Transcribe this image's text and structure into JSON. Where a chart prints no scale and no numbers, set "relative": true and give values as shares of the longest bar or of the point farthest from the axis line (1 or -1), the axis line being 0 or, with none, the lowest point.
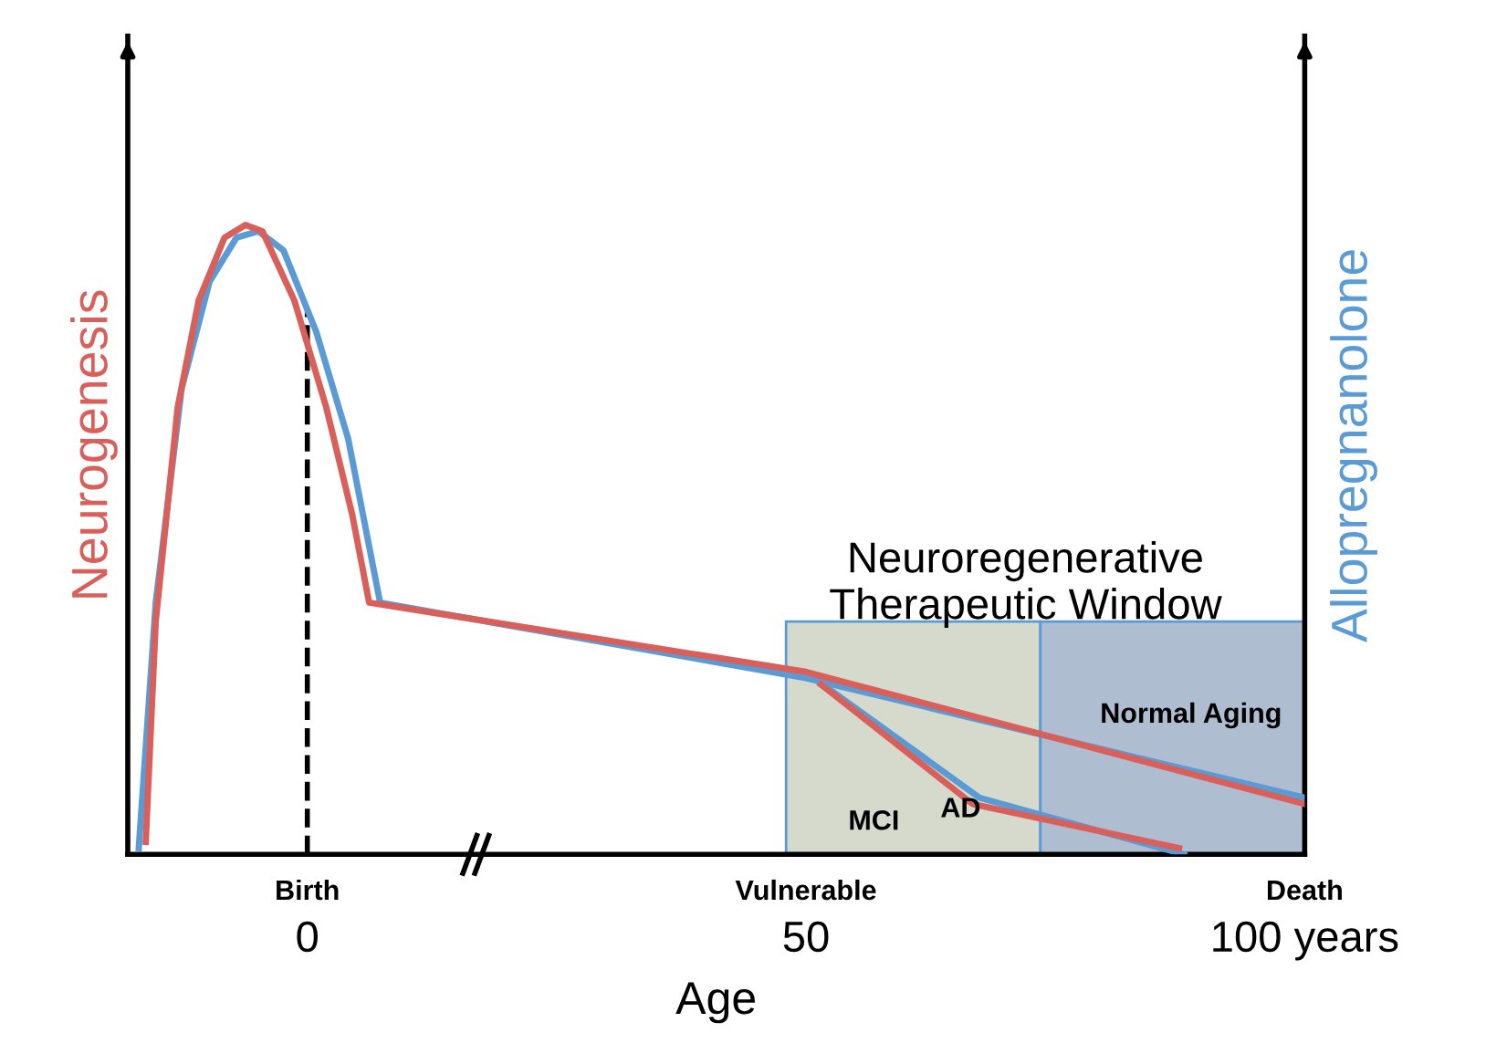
{
  "chart_data": {
    "type": "line",
    "relative": true,
    "xlabel": "Age",
    "ylabel": "Neurogenesis",
    "y2label": "Allopregnanolone",
    "xlim": [
      -18,
      100
    ],
    "xticks": [
      0,
      50,
      {
        "value": 100,
        "label": "100 years"
      }
    ],
    "series": [
      {
        "color": "#5b9bd5",
        "x": [
          -16.9,
          -15.2,
          -12.6,
          -9.8,
          -7.1,
          -4.9,
          -2.4,
          0.9,
          4.1,
          7.3,
          50,
          100
        ],
        "values": [
          0.01,
          0.4,
          0.74,
          0.91,
          0.98,
          0.99,
          0.96,
          0.83,
          0.66,
          0.4,
          0.28,
          0.09
        ]
      },
      {
        "color": "#5b9bd5",
        "x": [
          50.8,
          67.4,
          87.9
        ],
        "values": [
          0.28,
          0.09,
          0.0
        ]
      },
      {
        "color": "#d9605a",
        "x": [
          -16.2,
          -15.2,
          -13.0,
          -10.9,
          -8.3,
          -6.2,
          -4.5,
          -1.3,
          1.9,
          4.5,
          6.2,
          50,
          100
        ],
        "values": [
          0.02,
          0.37,
          0.71,
          0.88,
          0.98,
          1.0,
          0.99,
          0.88,
          0.71,
          0.54,
          0.4,
          0.29,
          0.08
        ]
      },
      {
        "color": "#d9605a",
        "x": [
          51.5,
          66.7,
          87.4
        ],
        "values": [
          0.27,
          0.08,
          0.01
        ]
      }
    ],
    "ref_lines": [
      {
        "axis": "x",
        "value": 0,
        "color": "#000000",
        "line_style": "dashed"
      }
    ],
    "bands": [
      {
        "axis": "x",
        "from": 48,
        "to": 73.5,
        "color": "#d5dacd"
      },
      {
        "axis": "x",
        "from": 73.5,
        "to": 100,
        "color": "#aebdd0"
      }
    ],
    "annotations": [
      {
        "text": "Neuroregenerative\nTherapeutic Window",
        "x": 72,
        "y": 0.36
      },
      "Normal Aging",
      "MCI",
      "AD",
      "Birth",
      "Vulnerable",
      "Death"
    ],
    "legend": false,
    "grid": false
  }
}
